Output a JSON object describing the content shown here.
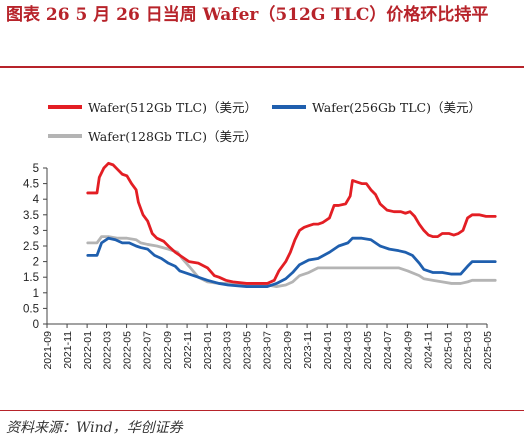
{
  "title": "图表 26    5 月 26 日当周 Wafer（512G TLC）价格环比持平",
  "source": "资料来源：Wind，华创证券",
  "colors": {
    "accent": "#b7232a"
  },
  "chart_data": {
    "type": "line",
    "ylim": [
      0,
      5
    ],
    "yticks": [
      0,
      0.5,
      1,
      1.5,
      2,
      2.5,
      3,
      3.5,
      4,
      4.5,
      5
    ],
    "ytick_labels": [
      "0",
      "0.5",
      "1",
      "1.5",
      "2",
      "2.5",
      "3",
      "3.5",
      "4",
      "4.5",
      "5"
    ],
    "xlim": [
      "2021-09",
      "2025-05"
    ],
    "xtick_labels": [
      "2021-09",
      "2021-11",
      "2022-01",
      "2022-03",
      "2022-05",
      "2022-07",
      "2022-09",
      "2022-11",
      "2023-01",
      "2023-03",
      "2023-05",
      "2023-07",
      "2023-09",
      "2023-11",
      "2024-01",
      "2024-03",
      "2024-05",
      "2024-07",
      "2024-09",
      "2024-11",
      "2025-01",
      "2025-03",
      "2025-05"
    ],
    "legend_position": "top",
    "series": [
      {
        "name": "Wafer(512Gb TLC)（美元）",
        "color": "#e31e24",
        "points": [
          [
            "2022-01-03",
            4.2
          ],
          [
            "2022-01-31",
            4.2
          ],
          [
            "2022-02-07",
            4.7
          ],
          [
            "2022-02-21",
            5.0
          ],
          [
            "2022-03-07",
            5.15
          ],
          [
            "2022-03-21",
            5.1
          ],
          [
            "2022-04-04",
            4.95
          ],
          [
            "2022-04-18",
            4.8
          ],
          [
            "2022-05-02",
            4.75
          ],
          [
            "2022-05-16",
            4.5
          ],
          [
            "2022-05-30",
            4.3
          ],
          [
            "2022-06-06",
            3.9
          ],
          [
            "2022-06-20",
            3.5
          ],
          [
            "2022-07-04",
            3.3
          ],
          [
            "2022-07-18",
            2.9
          ],
          [
            "2022-08-01",
            2.75
          ],
          [
            "2022-08-22",
            2.65
          ],
          [
            "2022-09-05",
            2.5
          ],
          [
            "2022-09-26",
            2.3
          ],
          [
            "2022-10-10",
            2.2
          ],
          [
            "2022-11-07",
            2.0
          ],
          [
            "2022-12-05",
            1.95
          ],
          [
            "2023-01-02",
            1.8
          ],
          [
            "2023-01-23",
            1.55
          ],
          [
            "2023-02-06",
            1.5
          ],
          [
            "2023-02-27",
            1.4
          ],
          [
            "2023-03-20",
            1.35
          ],
          [
            "2023-05-01",
            1.3
          ],
          [
            "2023-06-05",
            1.3
          ],
          [
            "2023-07-03",
            1.3
          ],
          [
            "2023-07-24",
            1.4
          ],
          [
            "2023-08-07",
            1.7
          ],
          [
            "2023-08-28",
            2.0
          ],
          [
            "2023-09-11",
            2.3
          ],
          [
            "2023-09-25",
            2.7
          ],
          [
            "2023-10-09",
            3.0
          ],
          [
            "2023-10-23",
            3.1
          ],
          [
            "2023-11-06",
            3.15
          ],
          [
            "2023-11-20",
            3.2
          ],
          [
            "2023-12-04",
            3.2
          ],
          [
            "2023-12-18",
            3.25
          ],
          [
            "2024-01-08",
            3.4
          ],
          [
            "2024-01-22",
            3.8
          ],
          [
            "2024-02-05",
            3.8
          ],
          [
            "2024-02-26",
            3.85
          ],
          [
            "2024-03-11",
            4.1
          ],
          [
            "2024-03-18",
            4.6
          ],
          [
            "2024-04-01",
            4.55
          ],
          [
            "2024-04-15",
            4.5
          ],
          [
            "2024-04-29",
            4.5
          ],
          [
            "2024-05-13",
            4.3
          ],
          [
            "2024-05-27",
            4.15
          ],
          [
            "2024-06-10",
            3.85
          ],
          [
            "2024-07-01",
            3.65
          ],
          [
            "2024-07-22",
            3.6
          ],
          [
            "2024-08-12",
            3.6
          ],
          [
            "2024-08-26",
            3.55
          ],
          [
            "2024-09-09",
            3.6
          ],
          [
            "2024-09-23",
            3.45
          ],
          [
            "2024-10-07",
            3.2
          ],
          [
            "2024-10-21",
            3.0
          ],
          [
            "2024-11-04",
            2.85
          ],
          [
            "2024-11-18",
            2.8
          ],
          [
            "2024-12-02",
            2.8
          ],
          [
            "2024-12-16",
            2.9
          ],
          [
            "2025-01-06",
            2.9
          ],
          [
            "2025-01-20",
            2.85
          ],
          [
            "2025-02-03",
            2.9
          ],
          [
            "2025-02-17",
            3.0
          ],
          [
            "2025-03-03",
            3.4
          ],
          [
            "2025-03-17",
            3.5
          ],
          [
            "2025-04-07",
            3.5
          ],
          [
            "2025-04-28",
            3.45
          ],
          [
            "2025-05-26",
            3.45
          ]
        ]
      },
      {
        "name": "Wafer(256Gb TLC)（美元）",
        "color": "#1f5fae",
        "points": [
          [
            "2022-01-03",
            2.2
          ],
          [
            "2022-01-31",
            2.2
          ],
          [
            "2022-02-14",
            2.6
          ],
          [
            "2022-03-07",
            2.75
          ],
          [
            "2022-03-28",
            2.7
          ],
          [
            "2022-04-18",
            2.6
          ],
          [
            "2022-05-09",
            2.6
          ],
          [
            "2022-05-30",
            2.5
          ],
          [
            "2022-06-13",
            2.45
          ],
          [
            "2022-07-04",
            2.4
          ],
          [
            "2022-07-25",
            2.2
          ],
          [
            "2022-08-15",
            2.1
          ],
          [
            "2022-09-05",
            1.95
          ],
          [
            "2022-09-26",
            1.85
          ],
          [
            "2022-10-10",
            1.7
          ],
          [
            "2022-11-07",
            1.6
          ],
          [
            "2022-12-05",
            1.5
          ],
          [
            "2023-01-02",
            1.4
          ],
          [
            "2023-02-06",
            1.3
          ],
          [
            "2023-03-06",
            1.25
          ],
          [
            "2023-05-01",
            1.2
          ],
          [
            "2023-07-03",
            1.2
          ],
          [
            "2023-07-31",
            1.3
          ],
          [
            "2023-08-28",
            1.45
          ],
          [
            "2023-09-18",
            1.65
          ],
          [
            "2023-10-09",
            1.9
          ],
          [
            "2023-11-06",
            2.05
          ],
          [
            "2023-12-04",
            2.1
          ],
          [
            "2024-01-08",
            2.3
          ],
          [
            "2024-02-05",
            2.5
          ],
          [
            "2024-03-04",
            2.6
          ],
          [
            "2024-03-18",
            2.75
          ],
          [
            "2024-04-15",
            2.75
          ],
          [
            "2024-05-13",
            2.7
          ],
          [
            "2024-06-10",
            2.5
          ],
          [
            "2024-07-08",
            2.4
          ],
          [
            "2024-08-05",
            2.35
          ],
          [
            "2024-08-26",
            2.3
          ],
          [
            "2024-09-16",
            2.2
          ],
          [
            "2024-10-07",
            1.95
          ],
          [
            "2024-10-21",
            1.75
          ],
          [
            "2024-11-18",
            1.65
          ],
          [
            "2024-12-16",
            1.65
          ],
          [
            "2025-01-13",
            1.6
          ],
          [
            "2025-02-10",
            1.6
          ],
          [
            "2025-03-03",
            1.85
          ],
          [
            "2025-03-17",
            2.0
          ],
          [
            "2025-04-14",
            2.0
          ],
          [
            "2025-05-26",
            2.0
          ]
        ]
      },
      {
        "name": "Wafer(128Gb TLC)（美元）",
        "color": "#b4b4b4",
        "points": [
          [
            "2022-01-03",
            2.6
          ],
          [
            "2022-01-31",
            2.6
          ],
          [
            "2022-02-14",
            2.8
          ],
          [
            "2022-03-07",
            2.8
          ],
          [
            "2022-04-04",
            2.75
          ],
          [
            "2022-05-02",
            2.75
          ],
          [
            "2022-05-30",
            2.7
          ],
          [
            "2022-06-13",
            2.6
          ],
          [
            "2022-07-04",
            2.55
          ],
          [
            "2022-08-01",
            2.5
          ],
          [
            "2022-09-05",
            2.4
          ],
          [
            "2022-10-03",
            2.3
          ],
          [
            "2022-10-17",
            2.1
          ],
          [
            "2022-11-07",
            1.85
          ],
          [
            "2022-12-05",
            1.5
          ],
          [
            "2023-01-02",
            1.35
          ],
          [
            "2023-02-06",
            1.3
          ],
          [
            "2023-03-06",
            1.3
          ],
          [
            "2023-05-01",
            1.25
          ],
          [
            "2023-07-03",
            1.25
          ],
          [
            "2023-07-31",
            1.2
          ],
          [
            "2023-08-28",
            1.25
          ],
          [
            "2023-09-18",
            1.35
          ],
          [
            "2023-10-09",
            1.55
          ],
          [
            "2023-11-06",
            1.65
          ],
          [
            "2023-12-04",
            1.8
          ],
          [
            "2024-02-05",
            1.8
          ],
          [
            "2024-05-06",
            1.8
          ],
          [
            "2024-08-05",
            1.8
          ],
          [
            "2024-09-02",
            1.7
          ],
          [
            "2024-10-07",
            1.55
          ],
          [
            "2024-10-21",
            1.45
          ],
          [
            "2024-11-18",
            1.4
          ],
          [
            "2024-12-16",
            1.35
          ],
          [
            "2025-01-13",
            1.3
          ],
          [
            "2025-02-10",
            1.3
          ],
          [
            "2025-03-03",
            1.35
          ],
          [
            "2025-03-17",
            1.4
          ],
          [
            "2025-04-14",
            1.4
          ],
          [
            "2025-05-26",
            1.4
          ]
        ]
      }
    ]
  }
}
